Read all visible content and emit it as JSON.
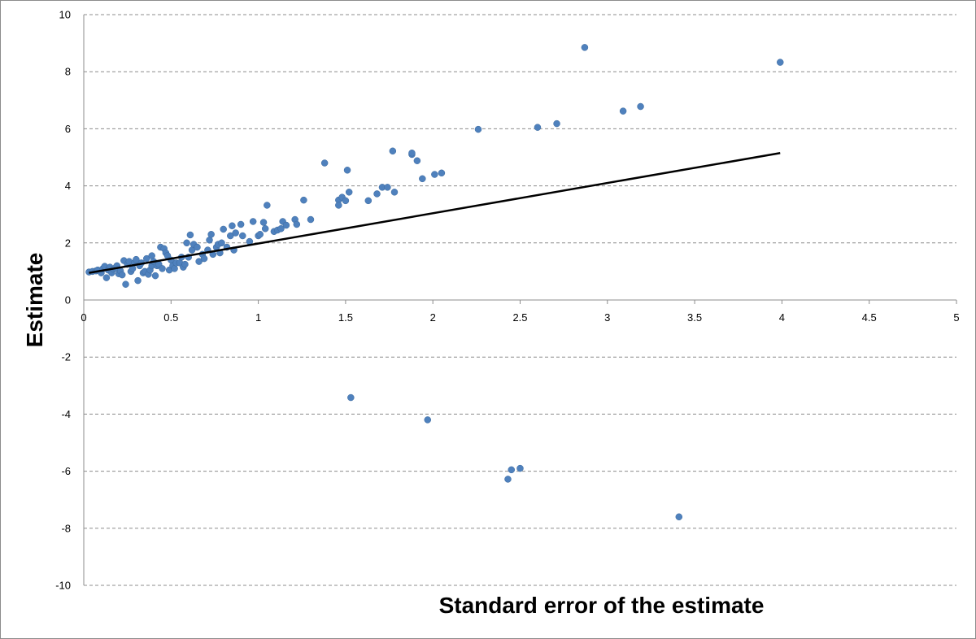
{
  "chart_data": {
    "type": "scatter",
    "title": "",
    "xlabel": "Standard error of the estimate",
    "ylabel": "Estimate",
    "xlim": [
      0,
      5
    ],
    "ylim": [
      -10,
      10
    ],
    "x_ticks": [
      "0",
      "0.5",
      "1",
      "1.5",
      "2",
      "2.5",
      "3",
      "3.5",
      "4",
      "4.5",
      "5"
    ],
    "y_ticks": [
      "10",
      "8",
      "6",
      "4",
      "2",
      "0",
      "-2",
      "-4",
      "-6",
      "-8",
      "-10"
    ],
    "grid": "horizontal dashed",
    "legend": "none",
    "colors": {
      "points": "#4f81bd",
      "trend_line": "#000000",
      "grid": "#8c8c8c"
    },
    "series": [
      {
        "marker": "circle",
        "points": [
          [
            0.03,
            0.98
          ],
          [
            0.05,
            1.0
          ],
          [
            0.07,
            1.02
          ],
          [
            0.08,
            1.05
          ],
          [
            0.1,
            0.95
          ],
          [
            0.11,
            1.1
          ],
          [
            0.12,
            1.18
          ],
          [
            0.13,
            0.78
          ],
          [
            0.14,
            1.05
          ],
          [
            0.15,
            1.15
          ],
          [
            0.16,
            0.95
          ],
          [
            0.17,
            1.08
          ],
          [
            0.18,
            1.12
          ],
          [
            0.19,
            1.2
          ],
          [
            0.2,
            0.92
          ],
          [
            0.21,
            1.02
          ],
          [
            0.22,
            0.88
          ],
          [
            0.23,
            1.38
          ],
          [
            0.24,
            0.55
          ],
          [
            0.25,
            1.25
          ],
          [
            0.26,
            1.35
          ],
          [
            0.27,
            1.0
          ],
          [
            0.28,
            1.1
          ],
          [
            0.29,
            1.3
          ],
          [
            0.3,
            1.42
          ],
          [
            0.31,
            0.68
          ],
          [
            0.32,
            1.2
          ],
          [
            0.33,
            1.3
          ],
          [
            0.34,
            0.95
          ],
          [
            0.35,
            1.0
          ],
          [
            0.36,
            1.45
          ],
          [
            0.37,
            0.9
          ],
          [
            0.38,
            1.05
          ],
          [
            0.39,
            1.2
          ],
          [
            0.39,
            1.55
          ],
          [
            0.4,
            1.35
          ],
          [
            0.41,
            0.85
          ],
          [
            0.42,
            1.2
          ],
          [
            0.43,
            1.25
          ],
          [
            0.44,
            1.85
          ],
          [
            0.45,
            1.1
          ],
          [
            0.46,
            1.8
          ],
          [
            0.47,
            1.65
          ],
          [
            0.48,
            1.55
          ],
          [
            0.49,
            1.05
          ],
          [
            0.5,
            1.4
          ],
          [
            0.51,
            1.2
          ],
          [
            0.52,
            1.1
          ],
          [
            0.53,
            1.3
          ],
          [
            0.55,
            1.3
          ],
          [
            0.56,
            1.5
          ],
          [
            0.57,
            1.15
          ],
          [
            0.58,
            1.25
          ],
          [
            0.59,
            2.0
          ],
          [
            0.6,
            1.5
          ],
          [
            0.61,
            2.28
          ],
          [
            0.62,
            1.75
          ],
          [
            0.63,
            1.95
          ],
          [
            0.65,
            1.85
          ],
          [
            0.66,
            1.35
          ],
          [
            0.68,
            1.6
          ],
          [
            0.69,
            1.45
          ],
          [
            0.71,
            1.75
          ],
          [
            0.72,
            2.1
          ],
          [
            0.73,
            2.3
          ],
          [
            0.74,
            1.6
          ],
          [
            0.76,
            1.85
          ],
          [
            0.77,
            1.95
          ],
          [
            0.78,
            1.65
          ],
          [
            0.79,
            2.0
          ],
          [
            0.8,
            2.48
          ],
          [
            0.82,
            1.85
          ],
          [
            0.84,
            2.25
          ],
          [
            0.85,
            2.6
          ],
          [
            0.86,
            1.75
          ],
          [
            0.87,
            2.35
          ],
          [
            0.9,
            2.65
          ],
          [
            0.91,
            2.25
          ],
          [
            0.95,
            2.05
          ],
          [
            0.97,
            2.75
          ],
          [
            1.0,
            2.25
          ],
          [
            1.01,
            2.3
          ],
          [
            1.03,
            2.72
          ],
          [
            1.04,
            2.5
          ],
          [
            1.05,
            3.32
          ],
          [
            1.09,
            2.4
          ],
          [
            1.11,
            2.45
          ],
          [
            1.13,
            2.5
          ],
          [
            1.14,
            2.75
          ],
          [
            1.16,
            2.62
          ],
          [
            1.21,
            2.82
          ],
          [
            1.22,
            2.65
          ],
          [
            1.26,
            3.5
          ],
          [
            1.3,
            2.82
          ],
          [
            1.38,
            4.8
          ],
          [
            1.46,
            3.5
          ],
          [
            1.46,
            3.32
          ],
          [
            1.48,
            3.6
          ],
          [
            1.5,
            3.48
          ],
          [
            1.51,
            4.55
          ],
          [
            1.52,
            3.78
          ],
          [
            1.53,
            -3.42
          ],
          [
            1.63,
            3.48
          ],
          [
            1.68,
            3.72
          ],
          [
            1.71,
            3.95
          ],
          [
            1.74,
            3.95
          ],
          [
            1.77,
            5.22
          ],
          [
            1.78,
            3.78
          ],
          [
            1.88,
            5.1
          ],
          [
            1.88,
            5.15
          ],
          [
            1.91,
            4.88
          ],
          [
            1.94,
            4.25
          ],
          [
            1.97,
            -4.2
          ],
          [
            2.01,
            4.4
          ],
          [
            2.05,
            4.45
          ],
          [
            2.26,
            5.98
          ],
          [
            2.43,
            -6.28
          ],
          [
            2.45,
            -5.95
          ],
          [
            2.5,
            -5.9
          ],
          [
            2.6,
            6.05
          ],
          [
            2.71,
            6.18
          ],
          [
            2.87,
            8.85
          ],
          [
            3.09,
            6.62
          ],
          [
            3.19,
            6.78
          ],
          [
            3.41,
            -7.6
          ],
          [
            3.99,
            8.33
          ]
        ]
      }
    ],
    "trend_line": {
      "type": "linear",
      "points": [
        [
          0.03,
          0.95
        ],
        [
          3.99,
          5.15
        ]
      ]
    }
  }
}
